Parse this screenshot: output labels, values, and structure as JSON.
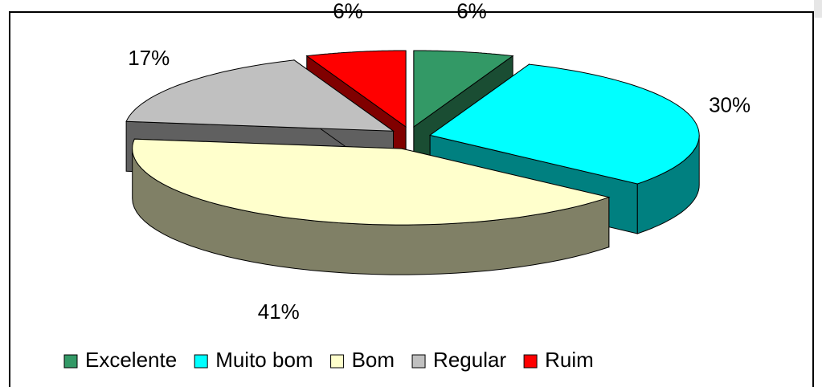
{
  "chart_data": {
    "type": "pie3d",
    "categories": [
      "Excelente",
      "Muito bom",
      "Bom",
      "Regular",
      "Ruim"
    ],
    "values": [
      6,
      30,
      41,
      17,
      6
    ],
    "value_labels": [
      "6%",
      "30%",
      "41%",
      "17%",
      "6%"
    ],
    "colors": [
      "#339966",
      "#00FFFF",
      "#FFFFCC",
      "#C0C0C0",
      "#FF0000"
    ],
    "legend": "bottom"
  }
}
